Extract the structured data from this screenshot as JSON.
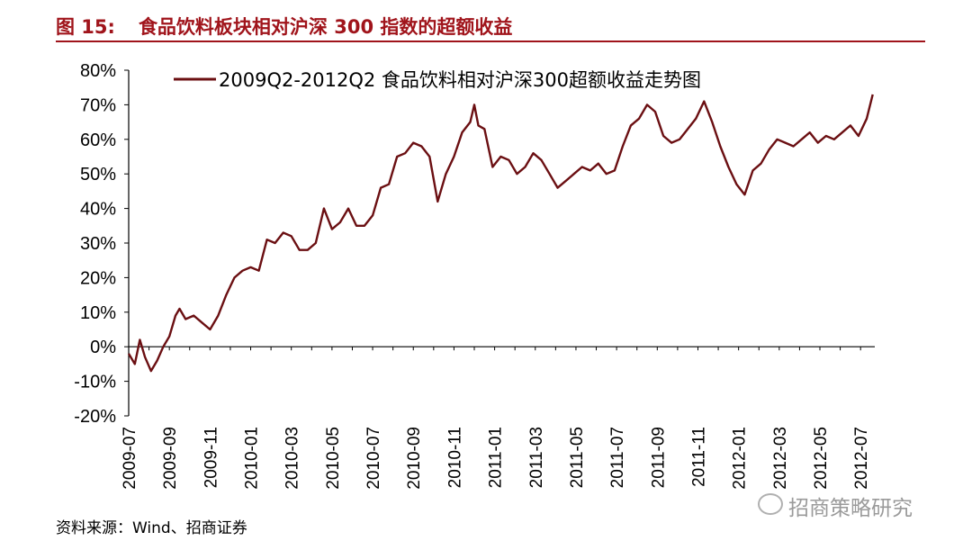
{
  "figure": {
    "number": "图 15:",
    "title": "食品饮料板块相对沪深 300 指数的超额收益",
    "source": "资料来源：Wind、招商证券",
    "watermark": "招商策略研究",
    "accent_color": "#a0141b"
  },
  "chart_data": {
    "type": "line",
    "title": "",
    "xlabel": "",
    "ylabel": "",
    "ylim": [
      -20,
      80
    ],
    "y_ticks": [
      -20,
      -10,
      0,
      10,
      20,
      30,
      40,
      50,
      60,
      70,
      80
    ],
    "y_tick_labels": [
      "-20%",
      "-10%",
      "0%",
      "10%",
      "20%",
      "30%",
      "40%",
      "50%",
      "60%",
      "70%",
      "80%"
    ],
    "x_tick_labels": [
      "2009-07",
      "2009-09",
      "2009-11",
      "2010-01",
      "2010-03",
      "2010-05",
      "2010-07",
      "2010-09",
      "2010-11",
      "2011-01",
      "2011-03",
      "2011-05",
      "2011-07",
      "2011-09",
      "2011-11",
      "2012-01",
      "2012-03",
      "2012-05",
      "2012-07"
    ],
    "x_range_months": [
      0,
      36.7
    ],
    "grid": false,
    "legend_position": "top",
    "series": [
      {
        "name": "2009Q2-2012Q2   食品饮料相对沪深300超额收益走势图",
        "color": "#6b0f12",
        "x": [
          0,
          0.3,
          0.55,
          0.8,
          1.1,
          1.4,
          1.7,
          2.0,
          2.3,
          2.5,
          2.8,
          3.2,
          3.6,
          4.0,
          4.4,
          4.8,
          5.2,
          5.6,
          6.0,
          6.4,
          6.8,
          7.2,
          7.6,
          8.0,
          8.4,
          8.8,
          9.2,
          9.6,
          10.0,
          10.4,
          10.8,
          11.2,
          11.6,
          12.0,
          12.4,
          12.8,
          13.2,
          13.6,
          14.0,
          14.4,
          14.8,
          15.2,
          15.6,
          16.0,
          16.4,
          16.8,
          17.0,
          17.2,
          17.5,
          17.9,
          18.3,
          18.7,
          19.1,
          19.5,
          19.9,
          20.3,
          20.7,
          21.1,
          21.5,
          21.9,
          22.3,
          22.7,
          23.1,
          23.5,
          23.9,
          24.3,
          24.7,
          25.1,
          25.5,
          25.9,
          26.3,
          26.7,
          27.1,
          27.5,
          27.9,
          28.3,
          28.7,
          29.1,
          29.5,
          29.9,
          30.3,
          30.7,
          31.1,
          31.5,
          31.9,
          32.3,
          32.7,
          33.1,
          33.5,
          33.9,
          34.3,
          34.7,
          35.1,
          35.5,
          35.9,
          36.3,
          36.6
        ],
        "values": [
          -2,
          -5,
          2,
          -3,
          -7,
          -4,
          0,
          3,
          9,
          11,
          8,
          9,
          7,
          5,
          9,
          15,
          20,
          22,
          23,
          22,
          31,
          30,
          33,
          32,
          28,
          28,
          30,
          40,
          34,
          36,
          40,
          35,
          35,
          38,
          46,
          47,
          55,
          56,
          59,
          58,
          55,
          42,
          50,
          55,
          62,
          65,
          70,
          64,
          63,
          52,
          55,
          54,
          50,
          52,
          56,
          54,
          50,
          46,
          48,
          50,
          52,
          51,
          53,
          50,
          51,
          58,
          64,
          66,
          70,
          68,
          61,
          59,
          60,
          63,
          66,
          71,
          65,
          58,
          52,
          47,
          44,
          51,
          53,
          57,
          60,
          59,
          58,
          60,
          62,
          59,
          61,
          60,
          62,
          64,
          61,
          66,
          73
        ]
      }
    ]
  }
}
